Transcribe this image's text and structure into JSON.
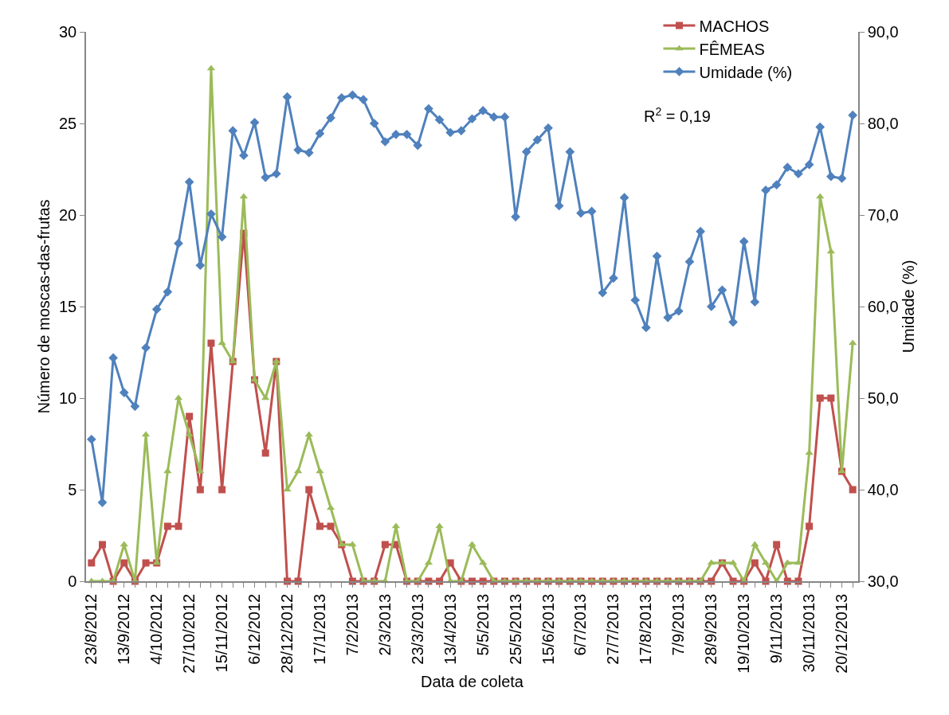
{
  "chart_data": {
    "type": "line",
    "xlabel": "Data de coleta",
    "ylabel": "Número de moscas-das-frutas",
    "y2label": "Umidade (%)",
    "categories": [
      "23/8/2012",
      null,
      null,
      "13/9/2012",
      null,
      null,
      "4/10/2012",
      null,
      null,
      "27/10/2012",
      null,
      null,
      "15/11/2012",
      null,
      null,
      "6/12/2012",
      null,
      null,
      "28/12/2012",
      null,
      null,
      "17/1/2013",
      null,
      null,
      "7/2/2013",
      null,
      null,
      "2/3/2013",
      null,
      null,
      "23/3/2013",
      null,
      null,
      "13/4/2013",
      null,
      null,
      "5/5/2013",
      null,
      null,
      "25/5/2013",
      null,
      null,
      "15/6/2013",
      null,
      null,
      "6/7/2013",
      null,
      null,
      "27/7/2013",
      null,
      null,
      "17/8/2013",
      null,
      null,
      "7/9/2013",
      null,
      null,
      "28/9/2013",
      null,
      null,
      "19/10/2013",
      null,
      null,
      "9/11/2013",
      null,
      null,
      "30/11/2013",
      null,
      null,
      "20/12/2013",
      null
    ],
    "series": [
      {
        "name": "MACHOS",
        "color": "#c0504d",
        "marker": "square",
        "values": [
          1,
          2,
          0,
          1,
          0,
          1,
          1,
          3,
          3,
          9,
          5,
          13,
          5,
          12,
          19,
          11,
          7,
          12,
          0,
          0,
          5,
          3,
          3,
          2,
          0,
          0,
          0,
          2,
          2,
          0,
          0,
          0,
          0,
          1,
          0,
          0,
          0,
          0,
          0,
          0,
          0,
          0,
          0,
          0,
          0,
          0,
          0,
          0,
          0,
          0,
          0,
          0,
          0,
          0,
          0,
          0,
          0,
          0,
          1,
          0,
          0,
          1,
          0,
          2,
          0,
          0,
          3,
          10,
          10,
          6,
          5
        ]
      },
      {
        "name": "FÊMEAS",
        "color": "#9bbb59",
        "marker": "triangle",
        "values": [
          0,
          0,
          0,
          2,
          0,
          8,
          1,
          6,
          10,
          8,
          6,
          28,
          13,
          12,
          21,
          11,
          10,
          12,
          5,
          6,
          8,
          6,
          4,
          2,
          2,
          0,
          0,
          0,
          3,
          0,
          0,
          1,
          3,
          0,
          0,
          2,
          1,
          0,
          0,
          0,
          0,
          0,
          0,
          0,
          0,
          0,
          0,
          0,
          0,
          0,
          0,
          0,
          0,
          0,
          0,
          0,
          0,
          1,
          1,
          1,
          0,
          2,
          1,
          0,
          1,
          1,
          7,
          21,
          18,
          6,
          13
        ]
      },
      {
        "name": "Umidade (%)",
        "color": "#4f81bd",
        "marker": "diamond",
        "axis": "y2",
        "values": [
          45.5,
          38.6,
          54.4,
          50.6,
          49.1,
          55.5,
          59.7,
          61.6,
          66.9,
          73.6,
          64.5,
          70.1,
          67.6,
          79.2,
          76.5,
          80.1,
          74.1,
          74.5,
          82.9,
          77.1,
          76.8,
          78.9,
          80.6,
          82.8,
          83.1,
          82.6,
          80.0,
          78.0,
          78.8,
          78.8,
          77.6,
          81.6,
          80.4,
          79.0,
          79.2,
          80.5,
          81.4,
          80.7,
          80.7,
          69.8,
          76.9,
          78.2,
          79.5,
          71.0,
          76.9,
          70.2,
          70.4,
          61.5,
          63.1,
          71.9,
          60.7,
          57.7,
          65.5,
          58.8,
          59.5,
          64.9,
          68.2,
          60.0,
          61.8,
          58.3,
          67.1,
          60.5,
          72.7,
          73.3,
          75.2,
          74.5,
          75.5,
          79.6,
          74.2,
          74.0,
          80.9
        ]
      }
    ],
    "ylim": [
      0,
      30
    ],
    "yticks": [
      0,
      5,
      10,
      15,
      20,
      25,
      30
    ],
    "y2lim": [
      30,
      90
    ],
    "y2ticks": [
      {
        "value": 30,
        "label": "30,0"
      },
      {
        "value": 40,
        "label": "40,0"
      },
      {
        "value": 50,
        "label": "50,0"
      },
      {
        "value": 60,
        "label": "60,0"
      },
      {
        "value": 70,
        "label": "70,0"
      },
      {
        "value": 80,
        "label": "80,0"
      },
      {
        "value": 90,
        "label": "90,0"
      }
    ],
    "annotations": [
      "R$^{2}$ = 0,19"
    ],
    "legend": "top right",
    "line_style": "solid"
  }
}
